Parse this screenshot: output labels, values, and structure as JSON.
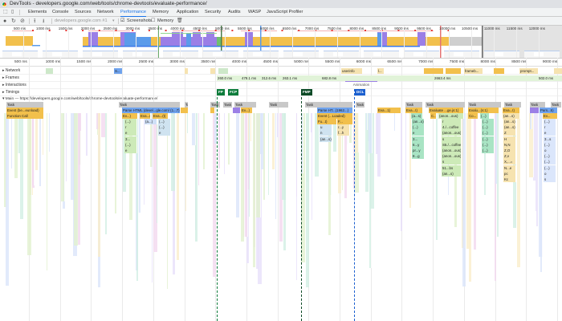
{
  "window": {
    "title": "DevTools - developers.google.com/web/tools/chrome-devtools/evaluate-performance/"
  },
  "tabs": [
    {
      "label": "Elements"
    },
    {
      "label": "Console"
    },
    {
      "label": "Sources"
    },
    {
      "label": "Network"
    },
    {
      "label": "Performance",
      "active": true
    },
    {
      "label": "Memory"
    },
    {
      "label": "Application"
    },
    {
      "label": "Security"
    },
    {
      "label": "Audits"
    },
    {
      "label": "WASP"
    },
    {
      "label": "JavaScript Profiler"
    }
  ],
  "toolbar": {
    "icons": [
      "record-icon",
      "reload-icon",
      "clear-icon",
      "upload-icon",
      "download-icon",
      "trash-icon"
    ],
    "profile_select": "developers.google.com #1",
    "screenshots_label": "Screenshots",
    "screenshots_checked": true,
    "memory_label": "Memory",
    "memory_checked": false
  },
  "overview": {
    "ticks": [
      "500 ms",
      "1000 ms",
      "1500 ms",
      "2000 ms",
      "2500 ms",
      "3000 ms",
      "3500 ms",
      "4000 ms",
      "4500 ms",
      "5000 ms",
      "5500 ms",
      "6000 ms",
      "6500 ms",
      "7000 ms",
      "7500 ms",
      "8000 ms",
      "8500 ms",
      "9000 ms",
      "9500 ms",
      "10000 ms",
      "10500 ms",
      "11000 ms",
      "11500 ms",
      "12000 ms"
    ],
    "colors": {
      "scripting": "#f2c04c",
      "rendering": "#9b7fe6",
      "loading": "#5b9bea",
      "painting": "#6fbf6f",
      "idle": "#cfcfcf"
    }
  },
  "ruler": {
    "ticks": [
      "500 ms",
      "1000 ms",
      "1500 ms",
      "2000 ms",
      "2500 ms",
      "3000 ms",
      "3500 ms",
      "4000 ms",
      "4500 ms",
      "5000 ms",
      "5500 ms",
      "6000 ms",
      "6500 ms",
      "7000 ms",
      "7500 ms",
      "8000 ms",
      "8500 ms",
      "9000 ms"
    ]
  },
  "tracks": {
    "network": "Network",
    "frames": "Frames",
    "interactions": "Interactions",
    "timings": "Timings",
    "main": "Main — https://developers.google.com/web/tools/chrome-devtools/evaluate-performance/"
  },
  "network_items": [
    "S...",
    "userinfo",
    "l...",
    "frameb...",
    "prompt..."
  ],
  "frames": [
    "260.0 ms",
    "478.1 ms",
    "312.6 ms",
    "263.1 ms",
    "682.8 ms",
    "2663.4 ms",
    "502.0 ms"
  ],
  "interactions": {
    "animation": "Animation"
  },
  "timings": {
    "fp": "FP",
    "fcp": "FCP",
    "fmp": "FMP",
    "dcl": "DCL"
  },
  "flame": {
    "task": "Task",
    "row1": [
      "Event (be...eunload)",
      "Parse HTML (devel...gle.com/ (1...7))",
      "Parse HT...(1962...)",
      "Event (...Loaded)",
      "Eva...t)",
      "Evaluate ...ge.js:1)",
      "Evalu...(s:1)",
      "Eva...t)",
      "Pars...5)",
      "Eva...1)",
      "Ev...)",
      "T..."
    ],
    "row2": [
      "Function Call",
      "Ev...)",
      "Eva...(t)",
      "Eva...(t)",
      "Fu...t)",
      "F...",
      "(a...s)",
      "C...",
      "(anon...ous)",
      "Co...",
      "(...)",
      "(an...s)",
      "Ev..."
    ],
    "stack": [
      "(...)",
      "(a...)",
      "r",
      "e",
      "3...",
      "(...)",
      "u",
      "n",
      "(an...s)",
      "r...y",
      "f...h",
      "4./...coffee",
      "(anon...ous)",
      "S5./...coffee",
      "6...y",
      "pr...y",
      "8...g",
      "Z",
      "H",
      "N,N",
      "Z,O",
      "Z,v",
      "X,...=",
      "N...e",
      "pc",
      "Kc",
      "3...s",
      "o",
      "s",
      "51...bs",
      "(an...s)"
    ]
  }
}
